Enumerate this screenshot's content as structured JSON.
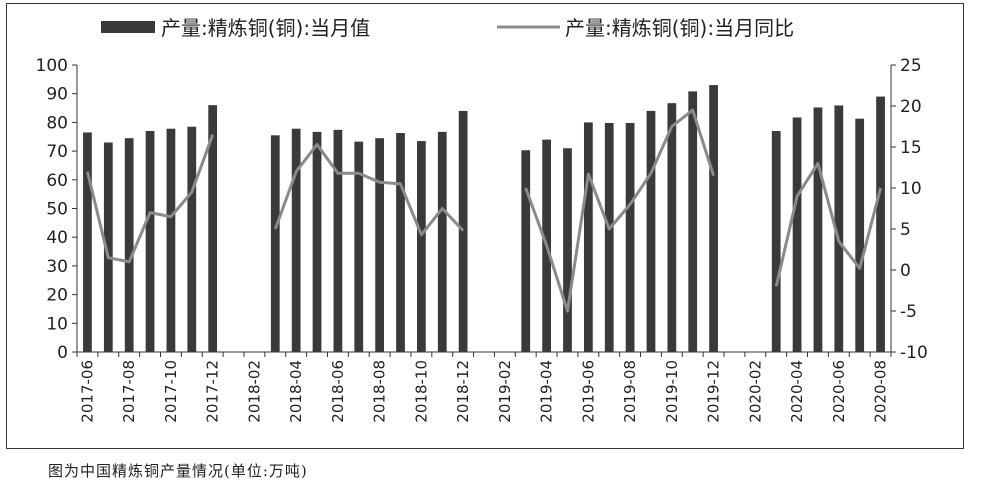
{
  "chart_data": {
    "type": "bar",
    "categories": [
      "2017-06",
      "2017-07",
      "2017-08",
      "2017-09",
      "2017-10",
      "2017-11",
      "2017-12",
      "2018-01",
      "2018-02",
      "2018-03",
      "2018-04",
      "2018-05",
      "2018-06",
      "2018-07",
      "2018-08",
      "2018-09",
      "2018-10",
      "2018-11",
      "2018-12",
      "2019-01",
      "2019-02",
      "2019-03",
      "2019-04",
      "2019-05",
      "2019-06",
      "2019-07",
      "2019-08",
      "2019-09",
      "2019-10",
      "2019-11",
      "2019-12",
      "2020-01",
      "2020-02",
      "2020-03",
      "2020-04",
      "2020-05",
      "2020-06",
      "2020-07",
      "2020-08"
    ],
    "x_tick_labels": [
      "2017-06",
      "2017-08",
      "2017-10",
      "2017-12",
      "2018-02",
      "2018-04",
      "2018-06",
      "2018-08",
      "2018-10",
      "2018-12",
      "2019-02",
      "2019-04",
      "2019-06",
      "2019-08",
      "2019-10",
      "2019-12",
      "2020-02",
      "2020-04",
      "2020-06",
      "2020-08"
    ],
    "series": [
      {
        "name": "产量:精炼铜(铜):当月值",
        "type": "bar",
        "axis": "left",
        "color": "#3a3a3a",
        "values": [
          76.5,
          73,
          74.5,
          77,
          77.8,
          78.5,
          86,
          null,
          null,
          75.5,
          77.8,
          76.7,
          77.4,
          73.3,
          74.5,
          76.3,
          73.5,
          76.7,
          84,
          null,
          null,
          70.3,
          74,
          71,
          80,
          79.8,
          79.8,
          84,
          86.7,
          90.8,
          93,
          null,
          null,
          77,
          81.7,
          85.2,
          85.9,
          81.3,
          89
        ]
      },
      {
        "name": "产量:精炼铜(铜):当月同比",
        "type": "line",
        "axis": "right",
        "color": "#8a8a8a",
        "values": [
          12,
          1.5,
          1,
          7,
          6.5,
          9.5,
          16.5,
          null,
          null,
          5,
          12,
          15.3,
          11.8,
          11.8,
          10.7,
          10.5,
          4.3,
          7.5,
          4.8,
          null,
          null,
          10,
          3,
          -5,
          11.7,
          5,
          8,
          11.8,
          17.5,
          19.5,
          11.5,
          null,
          null,
          -2,
          9,
          13,
          3.5,
          0.2,
          10
        ]
      }
    ],
    "yleft": {
      "min": 0,
      "max": 100,
      "ticks": [
        0,
        10,
        20,
        30,
        40,
        50,
        60,
        70,
        80,
        90,
        100
      ]
    },
    "yright": {
      "min": -10,
      "max": 25,
      "ticks": [
        -10,
        -5,
        0,
        5,
        10,
        15,
        20,
        25
      ]
    },
    "legend_position": "top",
    "grid": false
  },
  "caption": "图为中国精炼铜产量情况(单位:万吨)"
}
